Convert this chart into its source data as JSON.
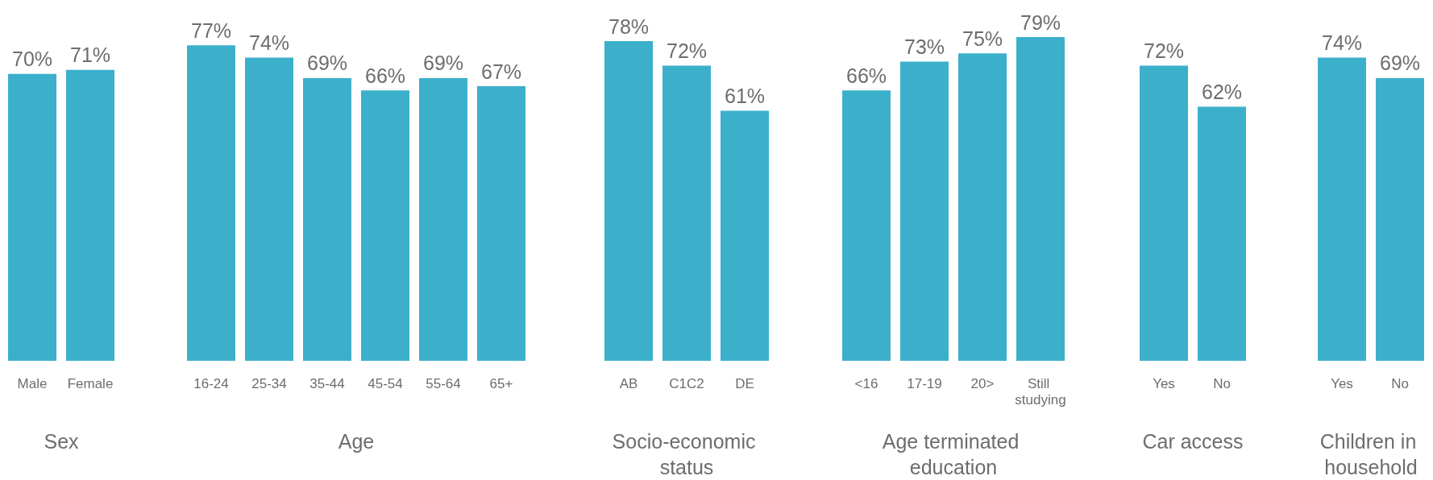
{
  "chart_data": [
    {
      "type": "bar",
      "xlabel": "Sex",
      "categories": [
        "Male",
        "Female"
      ],
      "values": [
        70,
        71
      ],
      "value_labels": [
        "70%",
        "71%"
      ],
      "color": "#3cb0cb",
      "tick_labels": "x"
    },
    {
      "type": "bar",
      "xlabel": "Age",
      "categories": [
        "16-24",
        "25-34",
        "35-44",
        "45-54",
        "55-64",
        "65+"
      ],
      "values": [
        77,
        74,
        69,
        66,
        69,
        67
      ],
      "value_labels": [
        "77%",
        "74%",
        "69%",
        "66%",
        "69%",
        "67%"
      ],
      "color": "#3cb0cb",
      "tick_labels": "x"
    },
    {
      "type": "bar",
      "xlabel": "Socio-economic status",
      "categories": [
        "AB",
        "C1C2",
        "DE"
      ],
      "values": [
        78,
        72,
        61
      ],
      "value_labels": [
        "78%",
        "72%",
        "61%"
      ],
      "color": "#3cb0cb",
      "tick_labels": "x"
    },
    {
      "type": "bar",
      "xlabel": "Age terminated education",
      "categories": [
        "<16",
        "17-19",
        "20>",
        "Still studying"
      ],
      "values": [
        66,
        73,
        75,
        79
      ],
      "value_labels": [
        "66%",
        "73%",
        "75%",
        "79%"
      ],
      "color": "#3cb0cb",
      "tick_labels": "x"
    },
    {
      "type": "bar",
      "xlabel": "Car access",
      "categories": [
        "Yes",
        "No"
      ],
      "values": [
        72,
        62
      ],
      "value_labels": [
        "72%",
        "62%"
      ],
      "color": "#3cb0cb",
      "tick_labels": "x"
    },
    {
      "type": "bar",
      "xlabel": "Children in household",
      "categories": [
        "Yes",
        "No"
      ],
      "values": [
        74,
        69
      ],
      "value_labels": [
        "74%",
        "69%"
      ],
      "color": "#3cb0cb",
      "tick_labels": "x"
    }
  ]
}
